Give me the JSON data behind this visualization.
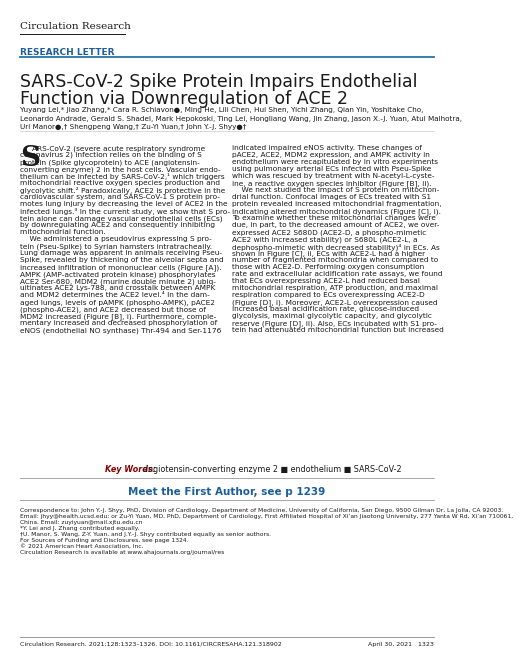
{
  "journal_title": "Circulation Research",
  "section_label": "RESEARCH LETTER",
  "article_title_line1": "SARS-CoV-2 Spike Protein Impairs Endothelial",
  "article_title_line2": "Function via Downregulation of ACE 2",
  "authors_line1": "Yuyang Lei,* Jiao Zhang,* Cara R. Schiavon●, Ming He, Lili Chen, Hui Shen, Yichi Zhang, Qian Yin, Yoshitake Cho,",
  "authors_line2": "Leonardo Andrade, Gerald S. Shadel, Mark Hepokoski, Ting Lei, Hongliang Wang, Jin Zhang, Jason X.-J. Yuan, Atul Malhotra,",
  "authors_line3": "Uri Manor●,† Shengpeng Wang,† Zu-Yi Yuan,† John Y.-J. Shyy●†",
  "body_left_lines": [
    "ARS-CoV-2 (severe acute respiratory syndrome",
    "coronavirus 2) infection relies on the binding of S",
    "protein (Spike glycoprotein) to ACE (angiotensin-",
    "converting enzyme) 2 in the host cells. Vascular endo-",
    "thelium can be infected by SARS-CoV-2,¹ which triggers",
    "mitochondrial reactive oxygen species production and",
    "glycolytic shift.² Paradoxically, ACE2 is protective in the",
    "cardiovascular system, and SARS-CoV-1 S protein pro-",
    "motes lung injury by decreasing the level of ACE2 in the",
    "infected lungs.³ In the current study, we show that S pro-",
    "tein alone can damage vascular endothelial cells (ECs)",
    "by downregulating ACE2 and consequently inhibiting",
    "mitochondrial function.",
    "    We administered a pseudovirus expressing S pro-",
    "tein (Pseu-Spike) to Syrian hamsters intratracheally.",
    "Lung damage was apparent in animals receiving Pseu-",
    "Spike, revealed by thickening of the alveolar septa and",
    "increased infiltration of mononuclear cells (Figure [A]).",
    "AMPK (AMP-activated protein kinase) phosphorylates",
    "ACE2 Ser-680, MDM2 (murine double minute 2) ubiq-",
    "uitinates ACE2 Lys-788, and crosstalk between AMPK",
    "and MDM2 determines the ACE2 level.⁴ In the dam-",
    "aged lungs, levels of pAMPK (phospho-AMPK), pACE2",
    "(phospho-ACE2), and ACE2 decreased but those of",
    "MDM2 increased (Figure [B], i). Furthermore, comple-",
    "mentary increased and decreased phosphorylation of",
    "eNOS (endothelial NO synthase) Thr-494 and Ser-1176"
  ],
  "body_right_lines": [
    "indicated impaired eNOS activity. These changes of",
    "pACE2, ACE2, MDM2 expression, and AMPK activity in",
    "endothelium were recapitulated by in vitro experiments",
    "using pulmonary arterial ECs infected with Pseu-Spike",
    "which was rescued by treatment with N-acetyl-L-cyste-",
    "ine, a reactive oxygen species inhibitor (Figure [B], ii).",
    "    We next studied the impact of S protein on mitochon-",
    "drial function. Confocal images of ECs treated with S1",
    "protein revealed increased mitochondrial fragmentation,",
    "indicating altered mitochondrial dynamics (Figure [C], i).",
    "To examine whether these mitochondrial changes were",
    "due, in part, to the decreased amount of ACE2, we over-",
    "expressed ACE2 S680D (ACE2-D, a phospho-mimetic",
    "ACE2 with increased stability) or S680L (ACE2-L, a",
    "dephospho-mimetic with decreased stability)⁴ in ECs. As",
    "shown in Figure [C], ii, ECs with ACE2-L had a higher",
    "number of fragmented mitochondria when compared to",
    "those with ACE2-D. Performing oxygen consumption",
    "rate and extracellular acidification rate assays, we found",
    "that ECs overexpressing ACE2-L had reduced basal",
    "mitochondrial respiration, ATP production, and maximal",
    "respiration compared to ECs overexpressing ACE2-D",
    "(Figure [D], i). Moreover, ACE2-L overexpression caused",
    "increased basal acidification rate, glucose-induced",
    "glycolysis, maximal glycolytic capacity, and glycolytic",
    "reserve (Figure [D], ii). Also, ECs incubated with S1 pro-",
    "tein had attenuated mitochondrial function but increased"
  ],
  "keywords_label": "Key Words:",
  "keywords_text": "angiotensin-converting enzyme 2 ■ endothelium ■ SARS-CoV-2",
  "meet_author": "Meet the First Author, see p 1239",
  "footnote_lines": [
    "Correspondence to: John Y.-J. Shyy, PhD, Division of Cardiology, Department of Medicine, University of California, San Diego, 9500 Gilman Dr, La Jolla, CA 92003.",
    "Email: jhyy@health.ucsd.edu; or Zu-Yi Yuan, MD, PhD, Department of Cardiology, First Affiliated Hospital of Xi’an Jiaotong University, 277 Yanta W Rd, Xi’an 710061,",
    "China. Email: zuyiyuan@mail.xjtu.edu.cn",
    "*Y. Lei and J. Zhang contributed equally.",
    "†U. Manor, S. Wang, Z-Y. Yuan, and J.Y.-J. Shyy contributed equally as senior authors.",
    "For Sources of Funding and Disclosures, see page 1324.",
    "© 2021 American Heart Association, Inc.",
    "Circulation Research is available at www.ahajournals.org/journal/res"
  ],
  "citation": "Circulation Research. 2021;128:1323–1326. DOI: 10.1161/CIRCRESAHA.121.318902",
  "page_right": "April 30, 2021   1323",
  "section_color": "#1B5E9B",
  "keyword_color": "#8B0000",
  "line_color": "#2874A6",
  "meet_color": "#1B5E9B",
  "bg_color": "#ffffff",
  "text_color": "#1a1a1a",
  "drop_cap": "S"
}
